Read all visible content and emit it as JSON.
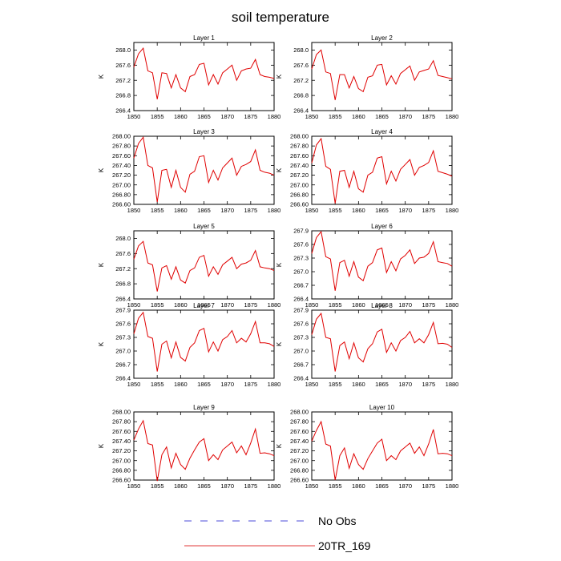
{
  "title": "soil temperature",
  "legend": [
    {
      "label": "No Obs",
      "color": "#4b4bd8",
      "dash": true
    },
    {
      "label": "20TR_169",
      "color": "#e03a3a",
      "dash": false
    }
  ],
  "chart_data": [
    {
      "type": "line",
      "title": "Layer 1",
      "xlabel": "",
      "ylabel": "K",
      "xlim": [
        1850,
        1880
      ],
      "ylim": [
        266.4,
        268.2
      ],
      "xticks": [
        "1850",
        "1855",
        "1860",
        "1865",
        "1870",
        "1875",
        "1880"
      ],
      "yticks": [
        "266.4",
        "266.8",
        "267.2",
        "267.6",
        "268.0"
      ],
      "series": [
        {
          "color": "#e00000",
          "x": [
            1850,
            1851,
            1852,
            1853,
            1854,
            1855,
            1856,
            1857,
            1858,
            1859,
            1860,
            1861,
            1862,
            1863,
            1864,
            1865,
            1866,
            1867,
            1868,
            1869,
            1870,
            1871,
            1872,
            1873,
            1874,
            1875,
            1876,
            1877,
            1878,
            1879,
            1880
          ],
          "values": [
            267.55,
            267.9,
            268.05,
            267.45,
            267.4,
            266.7,
            267.4,
            267.38,
            267.0,
            267.35,
            267.0,
            266.9,
            267.3,
            267.35,
            267.62,
            267.65,
            267.08,
            267.35,
            267.1,
            267.4,
            267.5,
            267.6,
            267.2,
            267.45,
            267.5,
            267.52,
            267.75,
            267.35,
            267.3,
            267.28,
            267.25
          ]
        }
      ]
    },
    {
      "type": "line",
      "title": "Layer 2",
      "xlabel": "",
      "ylabel": "",
      "xlim": [
        1850,
        1880
      ],
      "ylim": [
        266.4,
        268.2
      ],
      "xticks": [
        "1850",
        "1855",
        "1860",
        "1865",
        "1870",
        "1875",
        "1880"
      ],
      "yticks": [
        "266.4",
        "266.8",
        "267.2",
        "267.6",
        "268.0"
      ],
      "series": [
        {
          "color": "#e00000",
          "x": [
            1850,
            1851,
            1852,
            1853,
            1854,
            1855,
            1856,
            1857,
            1858,
            1859,
            1860,
            1861,
            1862,
            1863,
            1864,
            1865,
            1866,
            1867,
            1868,
            1869,
            1870,
            1871,
            1872,
            1873,
            1874,
            1875,
            1876,
            1877,
            1878,
            1879,
            1880
          ],
          "values": [
            267.5,
            267.88,
            268.0,
            267.42,
            267.38,
            266.68,
            267.35,
            267.35,
            267.0,
            267.3,
            266.98,
            266.9,
            267.28,
            267.32,
            267.6,
            267.62,
            267.08,
            267.32,
            267.1,
            267.38,
            267.48,
            267.58,
            267.2,
            267.42,
            267.46,
            267.5,
            267.72,
            267.33,
            267.3,
            267.27,
            267.24
          ]
        }
      ]
    },
    {
      "type": "line",
      "title": "Layer 3",
      "xlabel": "",
      "ylabel": "K",
      "xlim": [
        1850,
        1880
      ],
      "ylim": [
        266.6,
        268.0
      ],
      "xticks": [
        "1850",
        "1855",
        "1860",
        "1865",
        "1870",
        "1875",
        "1880"
      ],
      "yticks": [
        "266.60",
        "266.80",
        "267.00",
        "267.20",
        "267.40",
        "267.60",
        "267.80",
        "268.00"
      ],
      "series": [
        {
          "color": "#e00000",
          "x": [
            1850,
            1851,
            1852,
            1853,
            1854,
            1855,
            1856,
            1857,
            1858,
            1859,
            1860,
            1861,
            1862,
            1863,
            1864,
            1865,
            1866,
            1867,
            1868,
            1869,
            1870,
            1871,
            1872,
            1873,
            1874,
            1875,
            1876,
            1877,
            1878,
            1879,
            1880
          ],
          "values": [
            267.55,
            267.85,
            267.98,
            267.4,
            267.35,
            266.65,
            267.3,
            267.32,
            266.95,
            267.3,
            266.95,
            266.85,
            267.22,
            267.28,
            267.58,
            267.6,
            267.05,
            267.3,
            267.1,
            267.35,
            267.45,
            267.55,
            267.2,
            267.38,
            267.42,
            267.48,
            267.72,
            267.3,
            267.26,
            267.24,
            267.2
          ]
        }
      ]
    },
    {
      "type": "line",
      "title": "Layer 4",
      "xlabel": "",
      "ylabel": "K",
      "xlim": [
        1850,
        1880
      ],
      "ylim": [
        266.6,
        268.0
      ],
      "xticks": [
        "1850",
        "1855",
        "1860",
        "1865",
        "1870",
        "1875",
        "1880"
      ],
      "yticks": [
        "266.60",
        "266.80",
        "267.00",
        "267.20",
        "267.40",
        "267.60",
        "267.80",
        "268.00"
      ],
      "series": [
        {
          "color": "#e00000",
          "x": [
            1850,
            1851,
            1852,
            1853,
            1854,
            1855,
            1856,
            1857,
            1858,
            1859,
            1860,
            1861,
            1862,
            1863,
            1864,
            1865,
            1866,
            1867,
            1868,
            1869,
            1870,
            1871,
            1872,
            1873,
            1874,
            1875,
            1876,
            1877,
            1878,
            1879,
            1880
          ],
          "values": [
            267.45,
            267.82,
            267.95,
            267.38,
            267.32,
            266.62,
            267.28,
            267.3,
            266.95,
            267.28,
            266.92,
            266.85,
            267.2,
            267.26,
            267.55,
            267.58,
            267.02,
            267.28,
            267.08,
            267.32,
            267.42,
            267.52,
            267.2,
            267.36,
            267.4,
            267.46,
            267.7,
            267.28,
            267.25,
            267.22,
            267.18
          ]
        }
      ]
    },
    {
      "type": "line",
      "title": "Layer 5",
      "xlabel": "",
      "ylabel": "K",
      "xlim": [
        1850,
        1880
      ],
      "ylim": [
        266.4,
        268.2
      ],
      "xticks": [
        "1850",
        "1855",
        "1860",
        "1865",
        "1870",
        "1875",
        "1880"
      ],
      "yticks": [
        "266.4",
        "266.8",
        "267.2",
        "267.6",
        "268.0"
      ],
      "series": [
        {
          "color": "#e00000",
          "x": [
            1850,
            1851,
            1852,
            1853,
            1854,
            1855,
            1856,
            1857,
            1858,
            1859,
            1860,
            1861,
            1862,
            1863,
            1864,
            1865,
            1866,
            1867,
            1868,
            1869,
            1870,
            1871,
            1872,
            1873,
            1874,
            1875,
            1876,
            1877,
            1878,
            1879,
            1880
          ],
          "values": [
            267.45,
            267.8,
            267.92,
            267.35,
            267.3,
            266.6,
            267.22,
            267.28,
            266.92,
            267.25,
            266.9,
            266.82,
            267.15,
            267.22,
            267.5,
            267.55,
            267.0,
            267.25,
            267.05,
            267.3,
            267.4,
            267.5,
            267.2,
            267.32,
            267.35,
            267.42,
            267.68,
            267.25,
            267.22,
            267.2,
            267.15
          ]
        }
      ]
    },
    {
      "type": "line",
      "title": "Layer 6",
      "xlabel": "",
      "ylabel": "K",
      "xlim": [
        1850,
        1880
      ],
      "ylim": [
        266.4,
        267.9
      ],
      "xticks": [
        "1850",
        "1855",
        "1860",
        "1865",
        "1870",
        "1875",
        "1880"
      ],
      "yticks": [
        "266.4",
        "266.7",
        "267.0",
        "267.3",
        "267.6",
        "267.9"
      ],
      "series": [
        {
          "color": "#e00000",
          "x": [
            1850,
            1851,
            1852,
            1853,
            1854,
            1855,
            1856,
            1857,
            1858,
            1859,
            1860,
            1861,
            1862,
            1863,
            1864,
            1865,
            1866,
            1867,
            1868,
            1869,
            1870,
            1871,
            1872,
            1873,
            1874,
            1875,
            1876,
            1877,
            1878,
            1879,
            1880
          ],
          "values": [
            267.4,
            267.75,
            267.88,
            267.33,
            267.28,
            266.58,
            267.2,
            267.25,
            266.9,
            267.22,
            266.88,
            266.8,
            267.12,
            267.2,
            267.48,
            267.52,
            266.98,
            267.22,
            267.02,
            267.28,
            267.36,
            267.48,
            267.18,
            267.3,
            267.32,
            267.4,
            267.66,
            267.22,
            267.2,
            267.18,
            267.12
          ]
        }
      ]
    },
    {
      "type": "line",
      "title": "Layer 7",
      "xlabel": "",
      "ylabel": "K",
      "xlim": [
        1850,
        1880
      ],
      "ylim": [
        266.4,
        267.9
      ],
      "xticks": [
        "1850",
        "1855",
        "1860",
        "1865",
        "1870",
        "1875",
        "1880"
      ],
      "yticks": [
        "266.4",
        "266.7",
        "267.0",
        "267.3",
        "267.6",
        "267.9"
      ],
      "series": [
        {
          "color": "#e00000",
          "x": [
            1850,
            1851,
            1852,
            1853,
            1854,
            1855,
            1856,
            1857,
            1858,
            1859,
            1860,
            1861,
            1862,
            1863,
            1864,
            1865,
            1866,
            1867,
            1868,
            1869,
            1870,
            1871,
            1872,
            1873,
            1874,
            1875,
            1876,
            1877,
            1878,
            1879,
            1880
          ],
          "values": [
            267.38,
            267.72,
            267.85,
            267.32,
            267.28,
            266.55,
            267.15,
            267.22,
            266.85,
            267.2,
            266.86,
            266.78,
            267.08,
            267.18,
            267.45,
            267.5,
            266.98,
            267.2,
            267.0,
            267.25,
            267.32,
            267.45,
            267.18,
            267.28,
            267.2,
            267.38,
            267.65,
            267.18,
            267.18,
            267.16,
            267.1
          ]
        }
      ]
    },
    {
      "type": "line",
      "title": "Layer 8",
      "xlabel": "",
      "ylabel": "K",
      "xlim": [
        1850,
        1880
      ],
      "ylim": [
        266.4,
        267.9
      ],
      "xticks": [
        "1850",
        "1855",
        "1860",
        "1865",
        "1870",
        "1875",
        "1880"
      ],
      "yticks": [
        "266.4",
        "266.7",
        "267.0",
        "267.3",
        "267.6",
        "267.9"
      ],
      "series": [
        {
          "color": "#e00000",
          "x": [
            1850,
            1851,
            1852,
            1853,
            1854,
            1855,
            1856,
            1857,
            1858,
            1859,
            1860,
            1861,
            1862,
            1863,
            1864,
            1865,
            1866,
            1867,
            1868,
            1869,
            1870,
            1871,
            1872,
            1873,
            1874,
            1875,
            1876,
            1877,
            1878,
            1879,
            1880
          ],
          "values": [
            267.36,
            267.7,
            267.83,
            267.3,
            267.27,
            266.55,
            267.12,
            267.2,
            266.83,
            267.18,
            266.85,
            266.76,
            267.05,
            267.16,
            267.42,
            267.48,
            266.97,
            267.18,
            267.0,
            267.23,
            267.3,
            267.43,
            267.18,
            267.27,
            267.18,
            267.36,
            267.63,
            267.16,
            267.17,
            267.15,
            267.08
          ]
        }
      ]
    },
    {
      "type": "line",
      "title": "Layer 9",
      "xlabel": "",
      "ylabel": "K",
      "xlim": [
        1850,
        1880
      ],
      "ylim": [
        266.6,
        268.0
      ],
      "xticks": [
        "1850",
        "1855",
        "1860",
        "1865",
        "1870",
        "1875",
        "1880"
      ],
      "yticks": [
        "266.60",
        "266.80",
        "267.00",
        "267.20",
        "267.40",
        "267.60",
        "267.80",
        "268.00"
      ],
      "series": [
        {
          "color": "#e00000",
          "x": [
            1850,
            1851,
            1852,
            1853,
            1854,
            1855,
            1856,
            1857,
            1858,
            1859,
            1860,
            1861,
            1862,
            1863,
            1864,
            1865,
            1866,
            1867,
            1868,
            1869,
            1870,
            1871,
            1872,
            1873,
            1874,
            1875,
            1876,
            1877,
            1878,
            1879,
            1880
          ],
          "values": [
            267.42,
            267.65,
            267.82,
            267.35,
            267.32,
            266.58,
            267.12,
            267.28,
            266.85,
            267.15,
            266.92,
            266.82,
            267.05,
            267.22,
            267.38,
            267.45,
            267.0,
            267.12,
            267.02,
            267.22,
            267.3,
            267.38,
            267.16,
            267.3,
            267.12,
            267.36,
            267.65,
            267.15,
            267.16,
            267.14,
            267.1
          ]
        }
      ]
    },
    {
      "type": "line",
      "title": "Layer 10",
      "xlabel": "",
      "ylabel": "K",
      "xlim": [
        1850,
        1880
      ],
      "ylim": [
        266.6,
        268.0
      ],
      "xticks": [
        "1850",
        "1855",
        "1860",
        "1865",
        "1870",
        "1875",
        "1880"
      ],
      "yticks": [
        "266.60",
        "266.80",
        "267.00",
        "267.20",
        "267.40",
        "267.60",
        "267.80",
        "268.00"
      ],
      "series": [
        {
          "color": "#e00000",
          "x": [
            1850,
            1851,
            1852,
            1853,
            1854,
            1855,
            1856,
            1857,
            1858,
            1859,
            1860,
            1861,
            1862,
            1863,
            1864,
            1865,
            1866,
            1867,
            1868,
            1869,
            1870,
            1871,
            1872,
            1873,
            1874,
            1875,
            1876,
            1877,
            1878,
            1879,
            1880
          ],
          "values": [
            267.4,
            267.62,
            267.8,
            267.34,
            267.3,
            266.6,
            267.1,
            267.26,
            266.84,
            267.14,
            266.92,
            266.82,
            267.04,
            267.2,
            267.36,
            267.44,
            267.0,
            267.1,
            267.02,
            267.2,
            267.28,
            267.36,
            267.15,
            267.28,
            267.1,
            267.34,
            267.64,
            267.14,
            267.15,
            267.14,
            267.1
          ]
        }
      ]
    }
  ]
}
